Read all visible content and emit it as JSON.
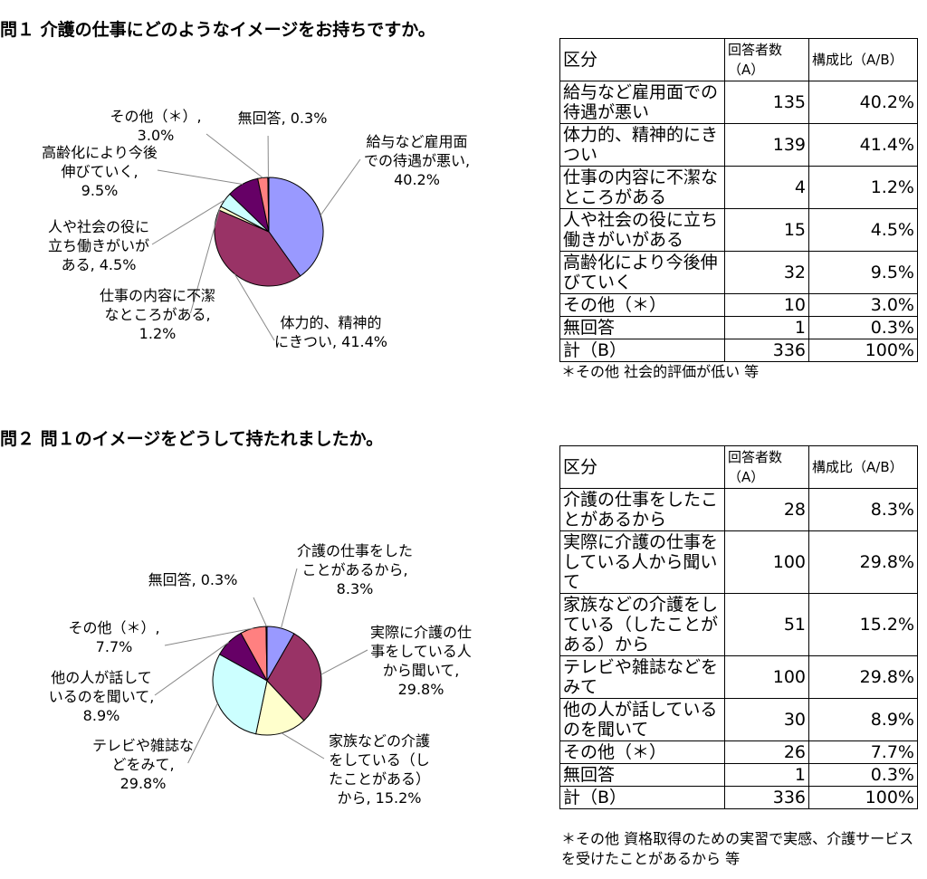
{
  "sections": [
    {
      "title": "問１ 介護の仕事にどのようなイメージをお持ちですか。",
      "pie": {
        "type": "pie",
        "labels": [
          "給与など雇用面での待遇が悪い, 40.2%",
          "体力的、精神的にきつい, 41.4%",
          "仕事の内容に不潔なところがある, 1.2%",
          "人や社会の役に立ち働きがいがある, 4.5%",
          "高齢化により今後伸びていく, 9.5%",
          "その他（＊）, 3.0%",
          "無回答, 0.3%"
        ],
        "values": [
          40.2,
          41.4,
          1.2,
          4.5,
          9.5,
          3.0,
          0.3
        ],
        "colors": [
          "#9999ff",
          "#993366",
          "#ffffcc",
          "#ccffff",
          "#660066",
          "#ff8080",
          "#0066cc"
        ]
      },
      "table": {
        "header": [
          "区分",
          "回答者数（A）",
          "構成比（A/B）"
        ],
        "rows": [
          [
            "給与など雇用面での待遇が悪い",
            "135",
            "40.2%"
          ],
          [
            "体力的、精神的にきつい",
            "139",
            "41.4%"
          ],
          [
            "仕事の内容に不潔なところがある",
            "4",
            "1.2%"
          ],
          [
            "人や社会の役に立ち働きがいがある",
            "15",
            "4.5%"
          ],
          [
            "高齢化により今後伸びていく",
            "32",
            "9.5%"
          ],
          [
            "その他（＊）",
            "10",
            "3.0%"
          ],
          [
            "無回答",
            "1",
            "0.3%"
          ],
          [
            "計（B）",
            "336",
            "100%"
          ]
        ]
      },
      "note": "＊その他 社会的評価が低い 等"
    },
    {
      "title": "問２ 問１のイメージをどうして持たれましたか。",
      "pie": {
        "type": "pie",
        "labels": [
          "介護の仕事をしたことがあるから, 8.3%",
          "実際に介護の仕事をしている人から聞いて, 29.8%",
          "家族などの介護をしている（したことがある）から, 15.2%",
          "テレビや雑誌などをみて, 29.8%",
          "他の人が話しているのを聞いて, 8.9%",
          "その他（＊）, 7.7%",
          "無回答, 0.3%"
        ],
        "values": [
          8.3,
          29.8,
          15.2,
          29.8,
          8.9,
          7.7,
          0.3
        ],
        "colors": [
          "#9999ff",
          "#993366",
          "#ffffcc",
          "#ccffff",
          "#660066",
          "#ff8080",
          "#0066cc"
        ]
      },
      "table": {
        "header": [
          "区分",
          "回答者数（A）",
          "構成比（A/B）"
        ],
        "rows": [
          [
            "介護の仕事をしたことがあるから",
            "28",
            "8.3%"
          ],
          [
            "実際に介護の仕事をしている人から聞いて",
            "100",
            "29.8%"
          ],
          [
            "家族などの介護をしている（したことがある）から",
            "51",
            "15.2%"
          ],
          [
            "テレビや雑誌などをみて",
            "100",
            "29.8%"
          ],
          [
            "他の人が話しているのを聞いて",
            "30",
            "8.9%"
          ],
          [
            "その他（＊）",
            "26",
            "7.7%"
          ],
          [
            "無回答",
            "1",
            "0.3%"
          ],
          [
            "計（B）",
            "336",
            "100%"
          ]
        ]
      },
      "note": "＊その他 資格取得のための実習で実感、介護サービスを受けたことがあるから 等"
    }
  ]
}
